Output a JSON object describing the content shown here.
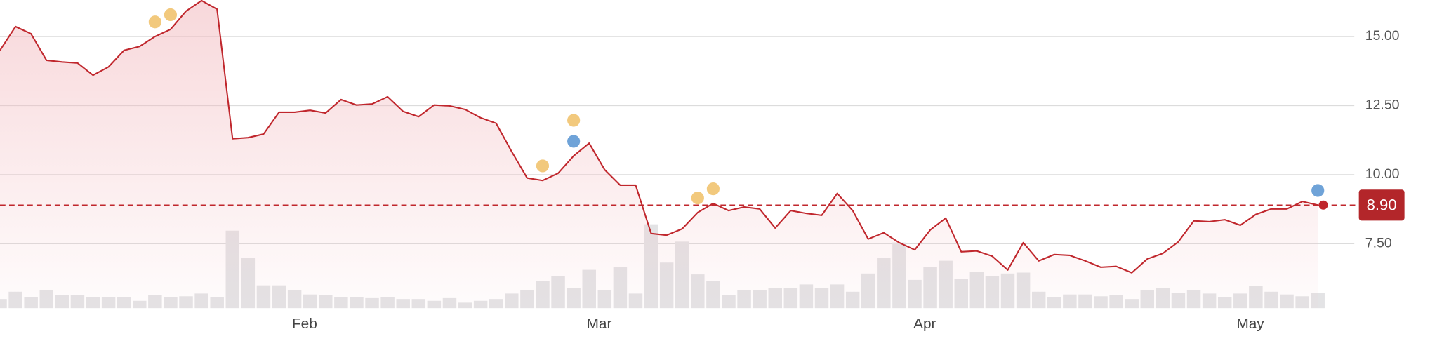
{
  "chart_data": {
    "type": "line",
    "categories": [
      null,
      null,
      null,
      null,
      null,
      null,
      null,
      null,
      null,
      null,
      null,
      null,
      null,
      null,
      null,
      null,
      null,
      null,
      null,
      null,
      "Feb",
      null,
      null,
      null,
      null,
      null,
      null,
      null,
      null,
      null,
      null,
      null,
      null,
      null,
      null,
      null,
      null,
      null,
      null,
      "Mar",
      null,
      null,
      null,
      null,
      null,
      null,
      null,
      null,
      null,
      null,
      null,
      null,
      null,
      null,
      null,
      null,
      null,
      null,
      null,
      null,
      "Apr",
      null,
      null,
      null,
      null,
      null,
      null,
      null,
      null,
      null,
      null,
      null,
      null,
      null,
      null,
      null,
      null,
      null,
      null,
      null,
      null,
      "May",
      null,
      null,
      null,
      null
    ],
    "series": [
      {
        "color": "#c0272d",
        "values": [
          14.5,
          15.36,
          15.1,
          14.14,
          14.08,
          14.04,
          13.6,
          13.9,
          14.5,
          14.64,
          15.0,
          15.26,
          15.92,
          16.3,
          15.99,
          11.3,
          11.34,
          11.47,
          12.26,
          12.26,
          12.33,
          12.23,
          12.72,
          12.52,
          12.56,
          12.82,
          12.29,
          12.1,
          12.52,
          12.49,
          12.36,
          12.06,
          11.86,
          10.84,
          9.88,
          9.79,
          10.05,
          10.68,
          11.14,
          10.18,
          9.62,
          9.62,
          7.87,
          7.81,
          8.04,
          8.63,
          8.96,
          8.7,
          8.83,
          8.76,
          8.07,
          8.7,
          8.6,
          8.53,
          9.32,
          8.7,
          7.67,
          7.9,
          7.54,
          7.28,
          8.0,
          8.43,
          7.21,
          7.24,
          7.05,
          6.55,
          7.54,
          6.88,
          7.11,
          7.08,
          6.88,
          6.65,
          6.68,
          6.45,
          6.95,
          7.15,
          7.57,
          8.33,
          8.3,
          8.37,
          8.17,
          8.56,
          8.76,
          8.76,
          9.03,
          8.9
        ]
      }
    ],
    "volume": {
      "color": "#e3e3e5",
      "vlim": [
        0,
        100
      ],
      "values": [
        10,
        18,
        12,
        20,
        14,
        14,
        12,
        12,
        12,
        8,
        14,
        12,
        13,
        16,
        12,
        85,
        55,
        25,
        25,
        20,
        15,
        14,
        12,
        12,
        11,
        12,
        10,
        10,
        8,
        11,
        6,
        8,
        10,
        16,
        20,
        30,
        35,
        22,
        42,
        20,
        45,
        16,
        92,
        50,
        73,
        37,
        30,
        14,
        20,
        20,
        22,
        22,
        26,
        22,
        26,
        18,
        38,
        55,
        72,
        31,
        45,
        52,
        32,
        40,
        35,
        38,
        39,
        18,
        12,
        15,
        15,
        13,
        14,
        10,
        20,
        22,
        17,
        20,
        16,
        12,
        16,
        24,
        18,
        15,
        13,
        17
      ]
    },
    "events": [
      {
        "index": 10,
        "color": "#f2c97d"
      },
      {
        "index": 11,
        "color": "#f2c97d"
      },
      {
        "index": 35,
        "color": "#f2c97d"
      },
      {
        "index": 37,
        "color": "#6fa3d8"
      },
      {
        "index": 37,
        "color": "#f2c97d"
      },
      {
        "index": 45,
        "color": "#f2c97d"
      },
      {
        "index": 46,
        "color": "#f2c97d"
      },
      {
        "index": 85,
        "color": "#6fa3d8"
      }
    ],
    "last_price": {
      "value": 8.9,
      "label": "8.90",
      "color": "#b3262a"
    },
    "ylim": [
      5.17,
      16.32
    ],
    "yticks": [
      {
        "value": 7.5,
        "label": "7.50"
      },
      {
        "value": 10,
        "label": "10.00"
      },
      {
        "value": 12.5,
        "label": "12.50"
      },
      {
        "value": 15,
        "label": "15.00"
      }
    ],
    "grid": true
  }
}
